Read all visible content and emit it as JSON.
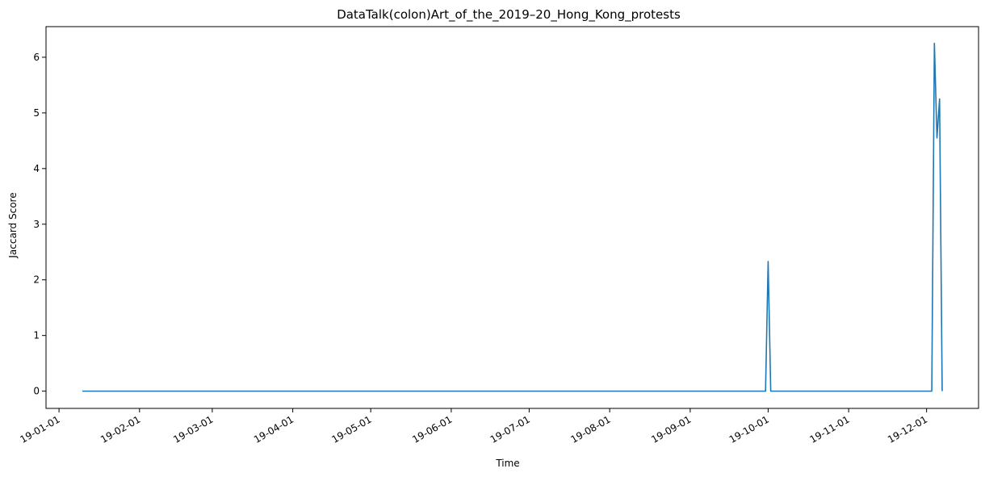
{
  "chart_data": {
    "type": "line",
    "title": "DataTalk(colon)Art_of_the_2019–20_Hong_Kong_protests",
    "xlabel": "Time",
    "ylabel": "Jaccard Score",
    "x_axis": "date",
    "xlim": [
      "2018-12-27",
      "2019-12-21"
    ],
    "ylim": [
      -0.31,
      6.55
    ],
    "x_ticks": [
      {
        "date": "2019-01-01",
        "label": "19-01-01"
      },
      {
        "date": "2019-02-01",
        "label": "19-02-01"
      },
      {
        "date": "2019-03-01",
        "label": "19-03-01"
      },
      {
        "date": "2019-04-01",
        "label": "19-04-01"
      },
      {
        "date": "2019-05-01",
        "label": "19-05-01"
      },
      {
        "date": "2019-06-01",
        "label": "19-06-01"
      },
      {
        "date": "2019-07-01",
        "label": "19-07-01"
      },
      {
        "date": "2019-08-01",
        "label": "19-08-01"
      },
      {
        "date": "2019-09-01",
        "label": "19-09-01"
      },
      {
        "date": "2019-10-01",
        "label": "19-10-01"
      },
      {
        "date": "2019-11-01",
        "label": "19-11-01"
      },
      {
        "date": "2019-12-01",
        "label": "19-12-01"
      }
    ],
    "y_ticks": [
      0,
      1,
      2,
      3,
      4,
      5,
      6
    ],
    "grid": false,
    "series": [
      {
        "color": "#1f77b4",
        "points": [
          {
            "x": "2019-01-10",
            "y": 0
          },
          {
            "x": "2019-09-30",
            "y": 0
          },
          {
            "x": "2019-10-01",
            "y": 2.33
          },
          {
            "x": "2019-10-02",
            "y": 0
          },
          {
            "x": "2019-12-03",
            "y": 0
          },
          {
            "x": "2019-12-04",
            "y": 6.25
          },
          {
            "x": "2019-12-05",
            "y": 4.55
          },
          {
            "x": "2019-12-06",
            "y": 5.25
          },
          {
            "x": "2019-12-07",
            "y": 0
          }
        ]
      }
    ]
  }
}
